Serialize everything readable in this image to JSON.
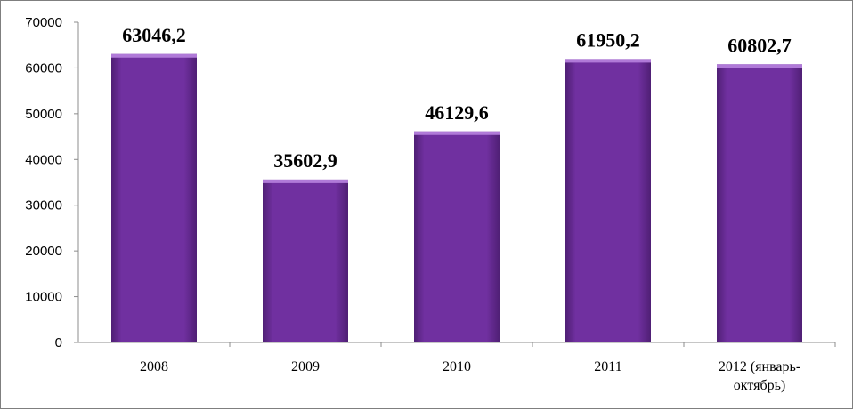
{
  "chart_data": {
    "type": "bar",
    "categories": [
      "2008",
      "2009",
      "2010",
      "2011",
      [
        "2012 (январь-",
        "октябрь)"
      ]
    ],
    "values": [
      63046.2,
      35602.9,
      46129.6,
      61950.2,
      60802.7
    ],
    "data_labels": [
      "63046,2",
      "35602,9",
      "46129,6",
      "61950,2",
      "60802,7"
    ],
    "yticks": [
      "0",
      "10000",
      "20000",
      "30000",
      "40000",
      "50000",
      "60000",
      "70000"
    ],
    "ylim": [
      0,
      70000
    ],
    "title": "",
    "xlabel": "",
    "ylabel": "",
    "grid": false,
    "legend": "none",
    "colors": {
      "bar_face": "#7030a0",
      "bar_light": "#9a57cc",
      "bar_dark": "#4f1f74",
      "bar_top": "#b07ad8",
      "axis": "#8c8c8c"
    }
  }
}
